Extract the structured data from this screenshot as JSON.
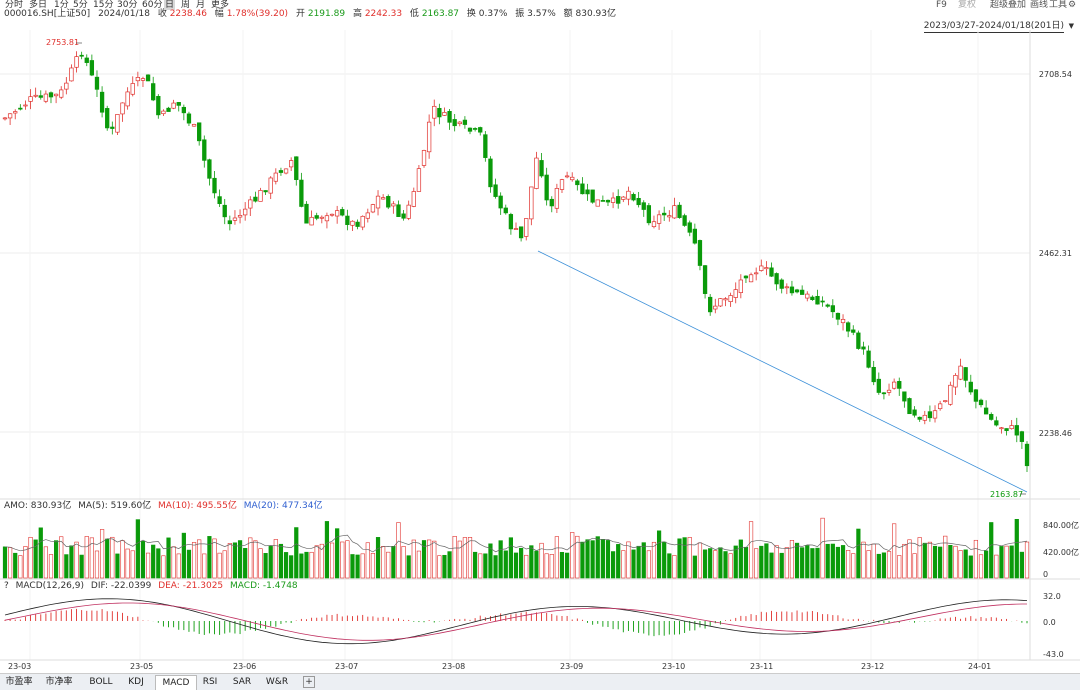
{
  "toolbar": {
    "periods": [
      "分时",
      "多日",
      "1分",
      "5分",
      "15分",
      "30分",
      "60分",
      "日",
      "周",
      "月",
      "更多"
    ],
    "active_period": "日",
    "right": {
      "f9": "F9",
      "fuquan": "复权",
      "overlay": "超级叠加",
      "draw": "画线",
      "tools": "工具"
    }
  },
  "info": {
    "code": "000016.SH[上证50]",
    "date": "2024/01/18",
    "close_label": "收",
    "close": "2238.46",
    "change_label": "幅",
    "change": "1.78%(39.20)",
    "open_label": "开",
    "open": "2191.89",
    "high_label": "高",
    "high": "2242.33",
    "low_label": "低",
    "low": "2163.87",
    "turnover_label": "换",
    "turnover": "0.37%",
    "amplitude_label": "振",
    "amplitude": "3.57%",
    "amount_label": "额",
    "amount": "830.93亿"
  },
  "range": {
    "label": "2023/03/27-2024/01/18(201日)"
  },
  "price_axis": {
    "ticks": [
      "2708.54",
      "2462.31",
      "2238.46"
    ]
  },
  "annotations": {
    "max": "2753.81",
    "min": "2163.87"
  },
  "amo": {
    "title": "AMO: 830.93亿",
    "ma5": "MA(5): 519.60亿",
    "ma10": "MA(10): 495.55亿",
    "ma20": "MA(20): 477.34亿",
    "ticks": [
      "840.00亿",
      "420.00亿",
      "0"
    ]
  },
  "macd": {
    "title": "MACD(12,26,9)",
    "dif": "DIF: -22.0399",
    "dea": "DEA: -21.3025",
    "macd": "MACD: -1.4748",
    "ticks": [
      "32.0",
      "0.0",
      "-43.0"
    ]
  },
  "date_axis": {
    "labels": [
      "23-03",
      "23-05",
      "23-06",
      "23-07",
      "23-08",
      "23-09",
      "23-10",
      "23-11",
      "23-12",
      "24-01"
    ]
  },
  "tabs": [
    "市盈率",
    "市净率",
    "BOLL",
    "KDJ",
    "MACD",
    "RSI",
    "SAR",
    "W&R"
  ],
  "active_tab": "MACD",
  "colors": {
    "up": "#e0302c",
    "down": "#0a9a0a",
    "trend": "#3a8fd8"
  },
  "chart_data": [
    {
      "type": "candlestick",
      "title": "000016.SH[上证50]",
      "y_ticks": [
        2708.54,
        2462.31,
        2238.46
      ],
      "max": 2753.81,
      "min": 2163.87,
      "last": {
        "open": 2191.89,
        "high": 2242.33,
        "low": 2163.87,
        "close": 2238.46
      }
    },
    {
      "type": "bar",
      "title": "AMO",
      "y_ticks": [
        840,
        420,
        0
      ],
      "ma5": 519.6,
      "ma10": 495.55,
      "ma20": 477.34
    },
    {
      "type": "bar",
      "title": "MACD(12,26,9)",
      "y_ticks": [
        32.0,
        0.0,
        -43.0
      ],
      "dif": -22.0399,
      "dea": -21.3025,
      "macd": -1.4748
    }
  ]
}
